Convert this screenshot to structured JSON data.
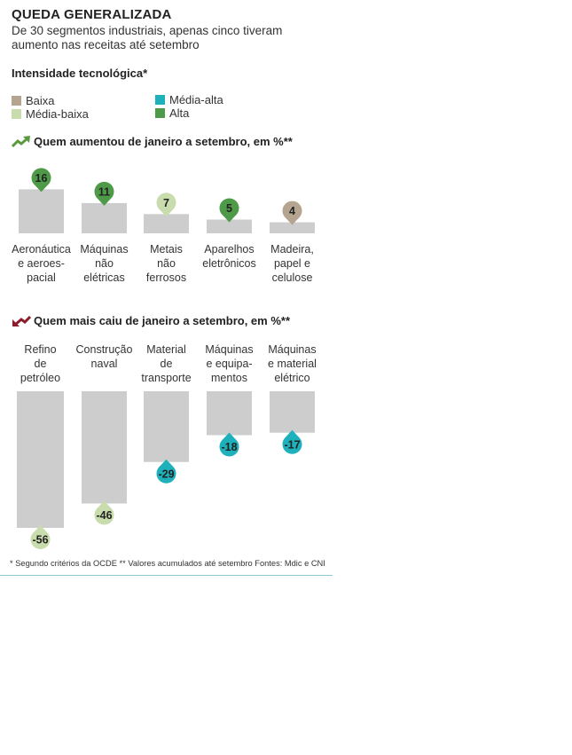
{
  "header": {
    "title": "QUEDA GENERALIZADA",
    "subtitle": "De 30 segmentos industriais, apenas cinco tiveram aumento nas receitas até setembro"
  },
  "legend": {
    "title": "Intensidade tecnológica*",
    "items": [
      {
        "key": "baixa",
        "label": "Baixa",
        "color": "#b5a590"
      },
      {
        "key": "media-baixa",
        "label": "Média-baixa",
        "color": "#c9dcae"
      },
      {
        "key": "media-alta",
        "label": "Média-alta",
        "color": "#1fb1bb"
      },
      {
        "key": "alta",
        "label": "Alta",
        "color": "#4e9a48"
      }
    ]
  },
  "colors": {
    "bar": "#cdcdcd",
    "arrow_up": "#5a9a3e",
    "arrow_down": "#8a1c2c",
    "rule": "#8fc9c9"
  },
  "chart_data": [
    {
      "type": "bar",
      "title": "Quem aumentou de janeiro a setembro, em %**",
      "categories": [
        [
          "Aeronáutica",
          "e aeroes-",
          "pacial"
        ],
        [
          "Máquinas",
          "não",
          "elétricas"
        ],
        [
          "Metais",
          "não",
          "ferrosos"
        ],
        [
          "Aparelhos",
          "eletrônicos"
        ],
        [
          "Madeira,",
          "papel e",
          "celulose"
        ]
      ],
      "values": [
        16,
        11,
        7,
        5,
        4
      ],
      "value_labels": [
        "16",
        "11",
        "7",
        "5",
        "4"
      ],
      "intensity": [
        "alta",
        "alta",
        "media-baixa",
        "alta",
        "baixa"
      ]
    },
    {
      "type": "bar",
      "title": "Quem mais caiu de janeiro a setembro, em %**",
      "categories": [
        [
          "Refino",
          "de",
          "petróleo"
        ],
        [
          "Construção",
          "naval"
        ],
        [
          "Material",
          "de",
          "transporte"
        ],
        [
          "Máquinas",
          "e equipa-",
          "mentos"
        ],
        [
          "Máquinas",
          "e material",
          "elétrico"
        ]
      ],
      "values": [
        -56,
        -46,
        -29,
        -18,
        -17
      ],
      "value_labels": [
        "-56",
        "-46",
        "-29",
        "-18",
        "-17"
      ],
      "intensity": [
        "media-baixa",
        "media-baixa",
        "media-alta",
        "media-alta",
        "media-alta"
      ]
    }
  ],
  "footnote": "* Segundo critérios da OCDE  ** Valores acumulados até setembro   Fontes: Mdic e CNI"
}
